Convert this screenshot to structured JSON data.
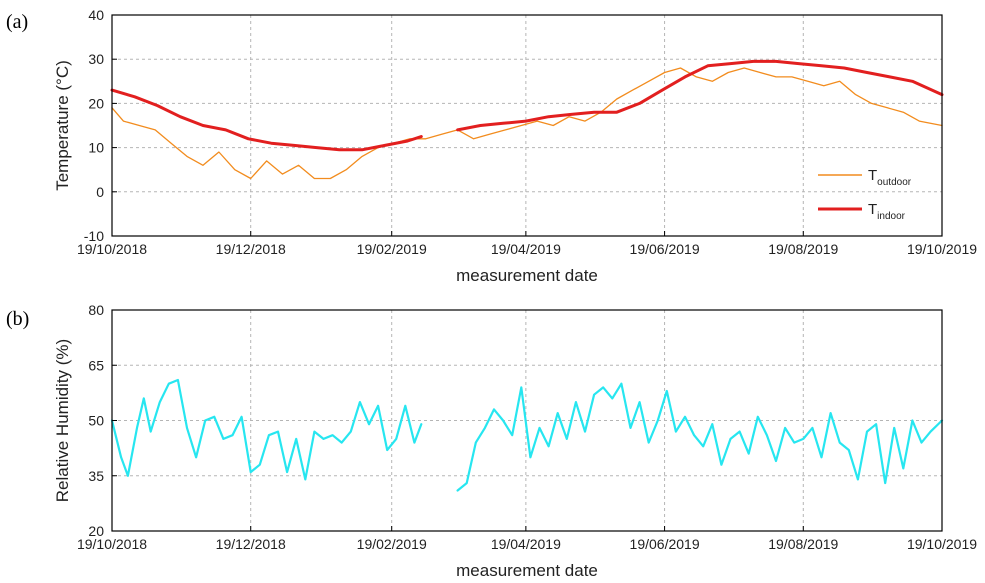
{
  "chart_data": [
    {
      "panel_label": "(a)",
      "type": "line",
      "xlabel": "measurement date",
      "ylabel": "Temperature (°C)",
      "xlim": [
        "2018-10-19",
        "2019-10-19"
      ],
      "ylim": [
        -10,
        40
      ],
      "x_ticks": [
        "19/10/2018",
        "19/12/2018",
        "19/02/2019",
        "19/04/2019",
        "19/06/2019",
        "19/08/2019",
        "19/10/2019"
      ],
      "y_ticks": [
        -10,
        0,
        10,
        20,
        30,
        40
      ],
      "grid": true,
      "legend_position": "right",
      "series": [
        {
          "name": "T",
          "subscript": "outdoor",
          "color": "#f28c1e",
          "segments": [
            {
              "x": [
                "2018-10-19",
                "2018-10-24",
                "2018-10-31",
                "2018-11-07",
                "2018-11-14",
                "2018-11-21",
                "2018-11-28",
                "2018-12-05",
                "2018-12-12",
                "2018-12-19",
                "2018-12-26",
                "2019-01-02",
                "2019-01-09",
                "2019-01-16",
                "2019-01-23",
                "2019-01-30",
                "2019-02-06",
                "2019-02-13",
                "2019-02-20",
                "2019-02-27",
                "2019-03-06",
                "2019-03-13",
                "2019-03-20",
                "2019-03-27",
                "2019-04-03",
                "2019-04-10",
                "2019-04-17",
                "2019-04-24",
                "2019-05-01",
                "2019-05-08",
                "2019-05-15",
                "2019-05-22",
                "2019-05-29",
                "2019-06-05",
                "2019-06-12",
                "2019-06-19",
                "2019-06-26",
                "2019-07-03",
                "2019-07-10",
                "2019-07-17",
                "2019-07-24",
                "2019-07-31",
                "2019-08-07",
                "2019-08-14",
                "2019-08-21",
                "2019-08-28",
                "2019-09-04",
                "2019-09-11",
                "2019-09-18",
                "2019-09-25",
                "2019-10-02",
                "2019-10-09",
                "2019-10-19"
              ],
              "y": [
                19,
                16,
                15,
                14,
                11,
                8,
                6,
                9,
                5,
                3,
                7,
                4,
                6,
                3,
                3,
                5,
                8,
                10,
                11,
                12,
                12,
                13,
                14,
                12,
                13,
                14,
                15,
                16,
                15,
                17,
                16,
                18,
                21,
                23,
                25,
                27,
                28,
                26,
                25,
                27,
                28,
                27,
                26,
                26,
                25,
                24,
                25,
                22,
                20,
                19,
                18,
                16,
                15
              ]
            }
          ]
        },
        {
          "name": "T",
          "subscript": "indoor",
          "color": "#e21f1f",
          "segments": [
            {
              "x": [
                "2018-10-19",
                "2018-10-29",
                "2018-11-08",
                "2018-11-18",
                "2018-11-28",
                "2018-12-08",
                "2018-12-18",
                "2018-12-28",
                "2019-01-07",
                "2019-01-17",
                "2019-01-27",
                "2019-02-06",
                "2019-02-16",
                "2019-02-26",
                "2019-03-04"
              ],
              "y": [
                23,
                21.5,
                19.5,
                17,
                15,
                14,
                12,
                11,
                10.5,
                10,
                9.5,
                9.5,
                10.5,
                11.5,
                12.5
              ]
            },
            {
              "x": [
                "2019-03-20",
                "2019-03-30",
                "2019-04-09",
                "2019-04-19",
                "2019-04-29",
                "2019-05-09",
                "2019-05-19",
                "2019-05-29",
                "2019-06-08",
                "2019-06-18",
                "2019-06-28",
                "2019-07-08",
                "2019-07-18",
                "2019-07-28",
                "2019-08-07",
                "2019-08-17",
                "2019-08-27",
                "2019-09-06",
                "2019-09-16",
                "2019-09-26",
                "2019-10-06",
                "2019-10-19"
              ],
              "y": [
                14,
                15,
                15.5,
                16,
                17,
                17.5,
                18,
                18,
                20,
                23,
                26,
                28.5,
                29,
                29.5,
                29.5,
                29,
                28.5,
                28,
                27,
                26,
                25,
                22
              ]
            }
          ]
        }
      ]
    },
    {
      "panel_label": "(b)",
      "type": "line",
      "xlabel": "measurement date",
      "ylabel": "Relative Humidity (%)",
      "xlim": [
        "2018-10-19",
        "2019-10-19"
      ],
      "ylim": [
        20,
        80
      ],
      "x_ticks": [
        "19/10/2018",
        "19/12/2018",
        "19/02/2019",
        "19/04/2019",
        "19/06/2019",
        "19/08/2019",
        "19/10/2019"
      ],
      "y_ticks": [
        20,
        35,
        50,
        65,
        80
      ],
      "grid": true,
      "series": [
        {
          "color": "#27e6f0",
          "segments": [
            {
              "x": [
                "2018-10-19",
                "2018-10-23",
                "2018-10-26",
                "2018-10-30",
                "2018-11-02",
                "2018-11-05",
                "2018-11-09",
                "2018-11-13",
                "2018-11-17",
                "2018-11-21",
                "2018-11-25",
                "2018-11-29",
                "2018-12-03",
                "2018-12-07",
                "2018-12-11",
                "2018-12-15",
                "2018-12-19",
                "2018-12-23",
                "2018-12-27",
                "2018-12-31",
                "2019-01-04",
                "2019-01-08",
                "2019-01-12",
                "2019-01-16",
                "2019-01-20",
                "2019-01-24",
                "2019-01-28",
                "2019-02-01",
                "2019-02-05",
                "2019-02-09",
                "2019-02-13",
                "2019-02-17",
                "2019-02-21",
                "2019-02-25",
                "2019-03-01",
                "2019-03-04"
              ],
              "y": [
                50,
                40,
                35,
                48,
                56,
                47,
                55,
                60,
                61,
                48,
                40,
                50,
                51,
                45,
                46,
                51,
                36,
                38,
                46,
                47,
                36,
                45,
                34,
                47,
                45,
                46,
                44,
                47,
                55,
                49,
                54,
                42,
                45,
                54,
                44,
                49
              ]
            },
            {
              "x": [
                "2019-03-20",
                "2019-03-24",
                "2019-03-28",
                "2019-04-01",
                "2019-04-05",
                "2019-04-09",
                "2019-04-13",
                "2019-04-17",
                "2019-04-21",
                "2019-04-25",
                "2019-04-29",
                "2019-05-03",
                "2019-05-07",
                "2019-05-11",
                "2019-05-15",
                "2019-05-19",
                "2019-05-23",
                "2019-05-27",
                "2019-05-31",
                "2019-06-04",
                "2019-06-08",
                "2019-06-12",
                "2019-06-16",
                "2019-06-20",
                "2019-06-24",
                "2019-06-28",
                "2019-07-02",
                "2019-07-06",
                "2019-07-10",
                "2019-07-14",
                "2019-07-18",
                "2019-07-22",
                "2019-07-26",
                "2019-07-30",
                "2019-08-03",
                "2019-08-07",
                "2019-08-11",
                "2019-08-15",
                "2019-08-19",
                "2019-08-23",
                "2019-08-27",
                "2019-08-31",
                "2019-09-04",
                "2019-09-08",
                "2019-09-12",
                "2019-09-16",
                "2019-09-20",
                "2019-09-24",
                "2019-09-28",
                "2019-10-02",
                "2019-10-06",
                "2019-10-10",
                "2019-10-14",
                "2019-10-19"
              ],
              "y": [
                31,
                33,
                44,
                48,
                53,
                50,
                46,
                59,
                40,
                48,
                43,
                52,
                45,
                55,
                47,
                57,
                59,
                56,
                60,
                48,
                55,
                44,
                50,
                58,
                47,
                51,
                46,
                43,
                49,
                38,
                45,
                47,
                41,
                51,
                46,
                39,
                48,
                44,
                45,
                48,
                40,
                52,
                44,
                42,
                34,
                47,
                49,
                33,
                48,
                37,
                50,
                44,
                47,
                50
              ]
            }
          ]
        }
      ]
    }
  ]
}
